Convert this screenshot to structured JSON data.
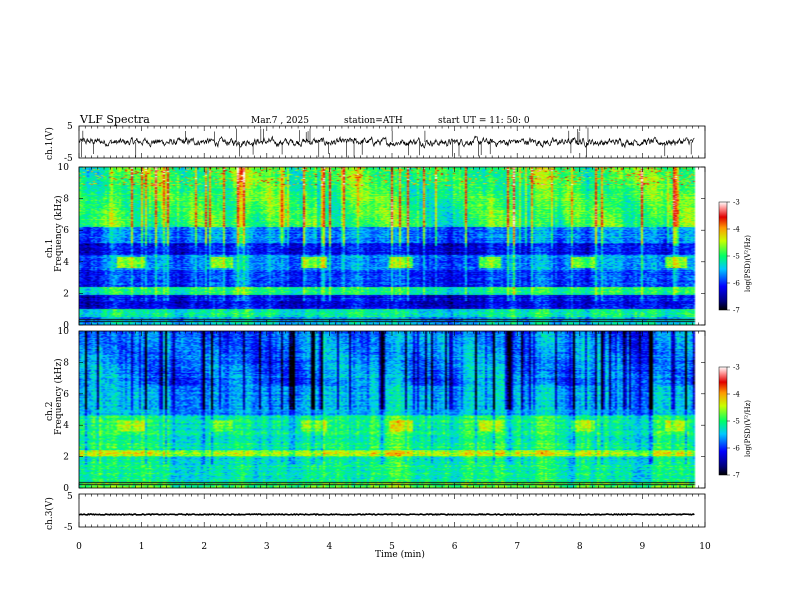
{
  "header": {
    "title": "VLF  Spectra",
    "date": "Mar.7  , 2025",
    "station": "station=ATH",
    "start": "start  UT  =   11: 50: 0"
  },
  "chart_data": [
    {
      "type": "line",
      "panel": "ch1-waveform",
      "ylabel": "ch.1(V)",
      "ylim": [
        -5,
        5
      ],
      "y_ticks": [
        "5",
        "-5"
      ],
      "xlim": [
        0,
        10
      ],
      "baseline_v": 0.0,
      "noise_amplitude_v": 1.0,
      "data_end_min": 9.83
    },
    {
      "type": "heatmap",
      "panel": "ch1-spectrogram",
      "ylabel_line1": "ch.1",
      "ylabel_line2": "Frequency  (kHz)",
      "ylim": [
        0,
        10
      ],
      "y_ticks": [
        "0",
        "2",
        "4",
        "6",
        "8",
        "10"
      ],
      "xlim": [
        0,
        10
      ],
      "data_end_min": 9.83,
      "tx_bursts_min": [
        [
          0.62,
          1.05
        ],
        [
          2.1,
          2.45
        ],
        [
          3.55,
          3.95
        ],
        [
          4.95,
          5.35
        ],
        [
          6.4,
          6.75
        ],
        [
          7.85,
          8.25
        ],
        [
          9.35,
          9.7
        ]
      ],
      "tx_band_khz": [
        3.6,
        4.3
      ],
      "colorbar": {
        "label": "log(PSD)(V²/Hz)",
        "ticks": [
          "-3",
          "-4",
          "-5",
          "-6",
          "-7"
        ],
        "range": [
          -7,
          -3
        ]
      }
    },
    {
      "type": "heatmap",
      "panel": "ch2-spectrogram",
      "ylabel_line1": "ch.2",
      "ylabel_line2": "Frequency  (kHz)",
      "ylim": [
        0,
        10
      ],
      "y_ticks": [
        "0",
        "2",
        "4",
        "6",
        "8",
        "10"
      ],
      "xlim": [
        0,
        10
      ],
      "data_end_min": 9.83,
      "tx_bursts_min": [
        [
          0.62,
          1.05
        ],
        [
          2.1,
          2.45
        ],
        [
          3.55,
          3.95
        ],
        [
          4.95,
          5.35
        ],
        [
          6.4,
          6.75
        ],
        [
          7.85,
          8.25
        ],
        [
          9.35,
          9.7
        ]
      ],
      "tx_band_khz": [
        3.6,
        4.3
      ],
      "colorbar": {
        "label": "log(PSD)(V²/Hz)",
        "ticks": [
          "-3",
          "-4",
          "-5",
          "-6",
          "-7"
        ],
        "range": [
          -7,
          -3
        ]
      }
    },
    {
      "type": "line",
      "panel": "ch3-waveform",
      "ylabel": "ch.3(V)",
      "ylim": [
        -5,
        5
      ],
      "y_ticks": [
        "5",
        "-5"
      ],
      "xlim": [
        0,
        10
      ],
      "baseline_v": -1.2,
      "noise_amplitude_v": 0.3,
      "data_end_min": 9.83,
      "xlabel": "Time  (min)",
      "x_ticks": [
        "0",
        "1",
        "2",
        "3",
        "4",
        "5",
        "6",
        "7",
        "8",
        "9",
        "10"
      ]
    }
  ]
}
